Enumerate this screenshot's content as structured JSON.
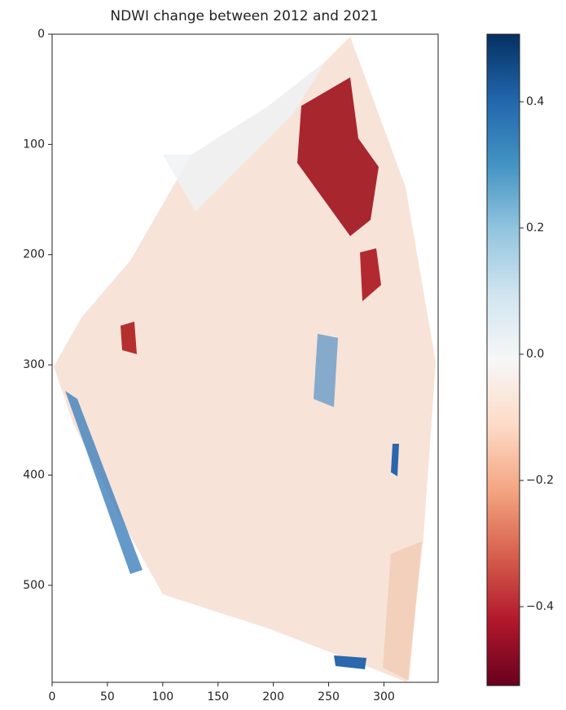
{
  "chart_data": {
    "type": "image",
    "title": "NDWI change between 2012 and 2021",
    "xlim": [
      0,
      349
    ],
    "xticks": [
      0,
      50,
      100,
      150,
      200,
      250,
      300
    ],
    "ylim": [
      588,
      0
    ],
    "yticks": [
      0,
      100,
      200,
      300,
      400,
      500
    ],
    "colorbar": {
      "clim": [
        -0.525,
        0.507
      ],
      "colors": [
        "#67001f",
        "#b2182b",
        "#d6604d",
        "#f4a582",
        "#fddbc7",
        "#f7f7f7",
        "#d1e5f0",
        "#92c5de",
        "#4393c3",
        "#2166ac",
        "#053061"
      ],
      "ticks": [
        {
          "value": -0.4,
          "label": "−0.4"
        },
        {
          "value": -0.2,
          "label": "−0.2"
        },
        {
          "value": 0,
          "label": "0.0"
        },
        0.2,
        0.4
      ]
    }
  }
}
